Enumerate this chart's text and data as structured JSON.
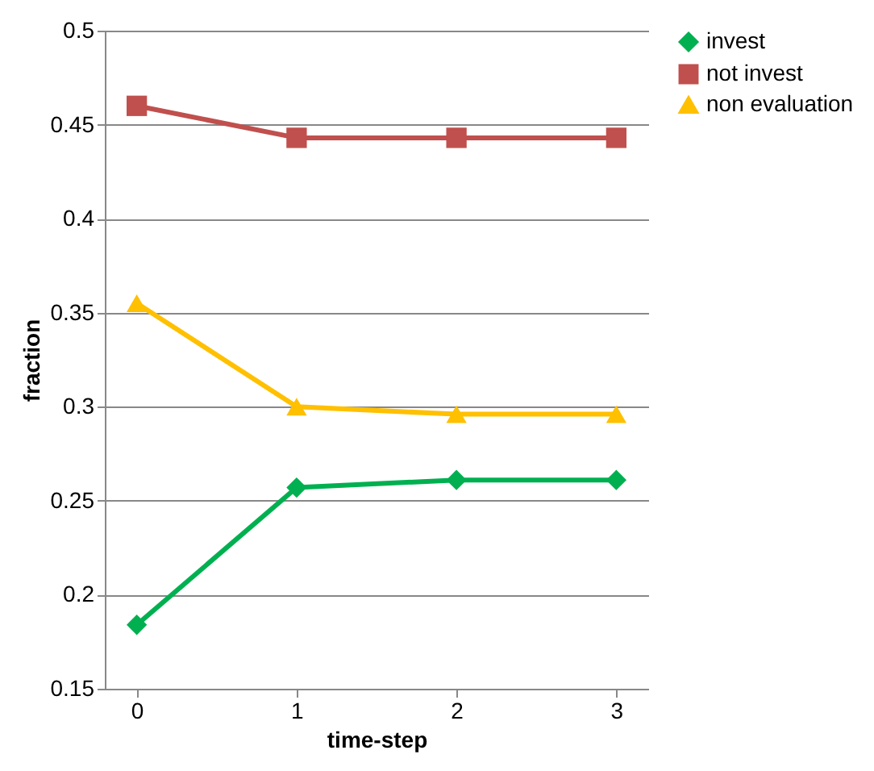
{
  "chart_data": {
    "type": "line",
    "xlabel": "time-step",
    "ylabel": "fraction",
    "categories": [
      "0",
      "1",
      "2",
      "3"
    ],
    "series": [
      {
        "name": "invest",
        "color": "#00b050",
        "marker": "diamond",
        "values": [
          0.184,
          0.257,
          0.261,
          0.261
        ]
      },
      {
        "name": "not invest",
        "color": "#c0504d",
        "marker": "square",
        "values": [
          0.46,
          0.443,
          0.443,
          0.443
        ]
      },
      {
        "name": "non evaluation",
        "color": "#ffc000",
        "marker": "triangle",
        "values": [
          0.355,
          0.3,
          0.296,
          0.296
        ]
      }
    ],
    "ylim": [
      0.15,
      0.5
    ],
    "yticks": [
      0.15,
      0.2,
      0.25,
      0.3,
      0.35,
      0.4,
      0.45,
      0.5
    ],
    "grid": "y",
    "legend": "right",
    "line_style": "solid"
  }
}
